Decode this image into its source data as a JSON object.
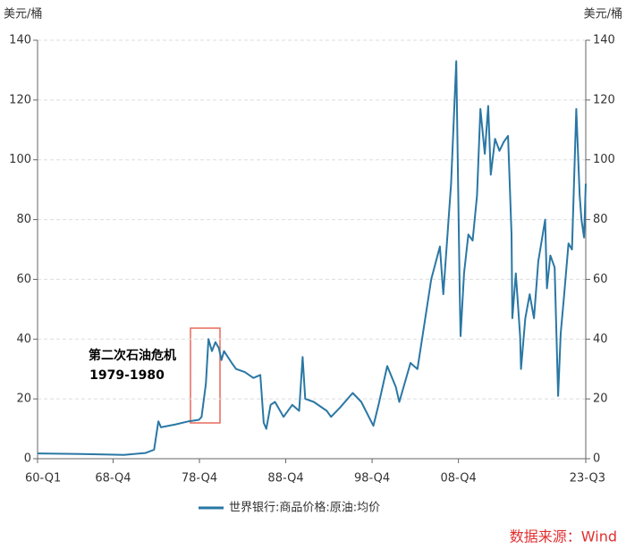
{
  "chart_data": {
    "type": "line",
    "y_label": "美元/桶",
    "y2_label": "美元/桶",
    "annotation": "第二次石油危机",
    "annotation_years": "1979-1980",
    "source": "数据来源：Wind",
    "x": [
      1960,
      1965,
      1970,
      1972.5,
      1973.5,
      1974.0,
      1974.3,
      1976,
      1977.5,
      1978.7,
      1979.0,
      1979.5,
      1979.8,
      1980.2,
      1980.6,
      1981.0,
      1981.3,
      1981.6,
      1982.5,
      1983.0,
      1984.0,
      1985.0,
      1985.8,
      1986.2,
      1986.5,
      1987.0,
      1987.5,
      1988.5,
      1989.5,
      1990.3,
      1990.7,
      1991.0,
      1992.0,
      1993.5,
      1994.0,
      1995,
      1996.5,
      1997.5,
      1998.9,
      1999.5,
      2000.5,
      2001.5,
      2001.9,
      2002.5,
      2003.2,
      2004.0,
      2004.8,
      2005.6,
      2006.6,
      2007.0,
      2007.9,
      2008.5,
      2008.9,
      2009.0,
      2009.4,
      2009.9,
      2010.4,
      2010.9,
      2011.3,
      2011.8,
      2012.2,
      2012.5,
      2013.0,
      2013.5,
      2014.0,
      2014.5,
      2014.9,
      2015.0,
      2015.4,
      2015.9,
      2016.0,
      2016.5,
      2017.0,
      2017.5,
      2018.0,
      2018.8,
      2019.0,
      2019.4,
      2019.9,
      2020.3,
      2020.6,
      2021.0,
      2021.5,
      2021.9,
      2022.4,
      2022.8,
      2023.0,
      2023.3,
      2023.5
    ],
    "series": [
      {
        "name": "世界银行:商品价格:原油:均价",
        "color": "#2a77a4",
        "values": [
          1.75,
          1.6,
          1.3,
          1.9,
          3,
          12.5,
          10.5,
          11.5,
          12.5,
          13,
          14,
          25,
          40,
          36,
          39,
          37,
          33,
          36,
          32,
          30,
          29,
          27,
          28,
          12,
          10,
          18,
          19,
          14,
          18,
          16,
          34,
          20,
          19,
          16,
          14,
          17,
          22,
          19,
          11,
          18,
          31,
          24,
          19,
          25,
          32,
          30,
          45,
          60,
          71,
          55,
          92,
          133,
          55,
          41,
          62,
          75,
          73,
          88,
          117,
          102,
          118,
          95,
          107,
          103,
          106,
          108,
          75,
          47,
          62,
          41,
          30,
          47,
          55,
          47,
          66,
          80,
          57,
          68,
          64,
          21,
          42,
          55,
          72,
          70,
          117,
          88,
          80,
          74,
          92
        ]
      }
    ],
    "xlim": [
      1960,
      2023.5
    ],
    "xticks": [
      {
        "value": 1960,
        "label": "60-Q1"
      },
      {
        "value": 1968.75,
        "label": "68-Q4"
      },
      {
        "value": 1978.75,
        "label": "78-Q4"
      },
      {
        "value": 1988.75,
        "label": "88-Q4"
      },
      {
        "value": 1998.75,
        "label": "98-Q4"
      },
      {
        "value": 2008.75,
        "label": "08-Q4"
      },
      {
        "value": 2023.5,
        "label": "23-Q3"
      }
    ],
    "ylim": [
      0,
      140
    ],
    "yticks": [
      0,
      20,
      40,
      60,
      80,
      100,
      120,
      140
    ],
    "y2lim": [
      0,
      140
    ],
    "y2ticks": [
      0,
      20,
      40,
      60,
      80,
      100,
      120,
      140
    ],
    "grid": true
  }
}
